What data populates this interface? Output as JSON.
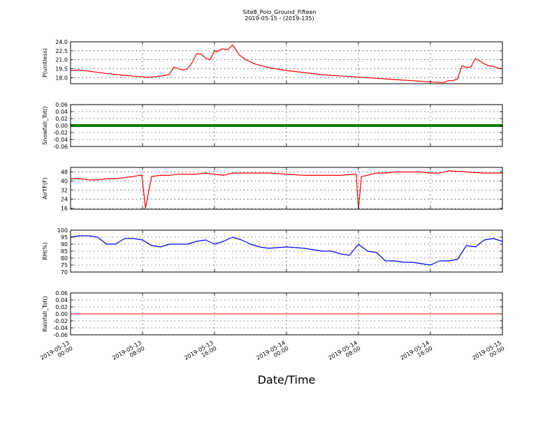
{
  "figure": {
    "title": "Site8_Polo_Ground_Fifteen",
    "subtitle": "2019-05-15 - (2019-135)",
    "xlabel": "Date/Time"
  },
  "chart_data": {
    "type": "line",
    "x_axis": {
      "range": [
        "2019-05-13 00:00",
        "2019-05-15 00:00"
      ],
      "ticks": [
        {
          "value": "2019-05-13 00:00",
          "line1": "2019-05-13",
          "line2": "00:00"
        },
        {
          "value": "2019-05-13 08:00",
          "line1": "2019-05-13",
          "line2": "08:00"
        },
        {
          "value": "2019-05-13 16:00",
          "line1": "2019-05-13",
          "line2": "16:00"
        },
        {
          "value": "2019-05-14 00:00",
          "line1": "2019-05-14",
          "line2": "00:00"
        },
        {
          "value": "2019-05-14 08:00",
          "line1": "2019-05-14",
          "line2": "08:00"
        },
        {
          "value": "2019-05-14 16:00",
          "line1": "2019-05-14",
          "line2": "16:00"
        },
        {
          "value": "2019-05-15 00:00",
          "line1": "2019-05-15",
          "line2": "00:00"
        }
      ]
    },
    "grid": true,
    "panels": [
      {
        "ylabel": "P(unitless)",
        "color": "#ff0000",
        "ylim": [
          17.0,
          24.0
        ],
        "yticks": [
          "18.0",
          "19.5",
          "21.0",
          "22.5",
          "24.0"
        ],
        "x": [
          "2019-05-13 00:00",
          "2019-05-13 01:00",
          "2019-05-13 02:00",
          "2019-05-13 04:00",
          "2019-05-13 06:00",
          "2019-05-13 07:30",
          "2019-05-13 08:30",
          "2019-05-13 09:00",
          "2019-05-13 09:30",
          "2019-05-13 10:00",
          "2019-05-13 10:30",
          "2019-05-13 11:00",
          "2019-05-13 11:30",
          "2019-05-13 12:00",
          "2019-05-13 12:30",
          "2019-05-13 13:00",
          "2019-05-13 13:30",
          "2019-05-13 14:00",
          "2019-05-13 14:30",
          "2019-05-13 15:00",
          "2019-05-13 15:30",
          "2019-05-13 16:00",
          "2019-05-13 16:15",
          "2019-05-13 16:45",
          "2019-05-13 17:00",
          "2019-05-13 17:30",
          "2019-05-13 18:00",
          "2019-05-13 18:15",
          "2019-05-13 18:45",
          "2019-05-13 19:30",
          "2019-05-13 20:30",
          "2019-05-13 22:00",
          "2019-05-14 00:00",
          "2019-05-14 04:00",
          "2019-05-14 08:00",
          "2019-05-14 12:00",
          "2019-05-14 16:00",
          "2019-05-14 17:30",
          "2019-05-14 18:00",
          "2019-05-14 18:30",
          "2019-05-14 19:00",
          "2019-05-14 19:30",
          "2019-05-14 20:00",
          "2019-05-14 20:30",
          "2019-05-14 21:00",
          "2019-05-14 21:30",
          "2019-05-14 22:00",
          "2019-05-14 22:30",
          "2019-05-14 23:00",
          "2019-05-14 23:30",
          "2019-05-15 00:00"
        ],
        "y": [
          19.2,
          19.3,
          19.1,
          18.7,
          18.4,
          18.2,
          18.1,
          18.1,
          18.2,
          18.3,
          18.4,
          18.6,
          19.8,
          19.5,
          19.3,
          19.5,
          20.5,
          22.0,
          22.0,
          21.3,
          21.0,
          22.5,
          22.3,
          22.8,
          22.8,
          22.7,
          23.5,
          23.0,
          21.8,
          21.0,
          20.3,
          19.7,
          19.2,
          18.5,
          18.1,
          17.7,
          17.3,
          17.2,
          17.5,
          17.5,
          17.8,
          20.0,
          19.7,
          19.8,
          21.2,
          20.8,
          20.3,
          20.0,
          19.9,
          19.6,
          19.5
        ]
      },
      {
        "ylabel": "Snowfall_Tot()",
        "color": "#008000",
        "ylim": [
          -0.06,
          0.06
        ],
        "yticks": [
          "-0.06",
          "-0.04",
          "-0.02",
          "0.00",
          "0.02",
          "0.04",
          "0.06"
        ],
        "constant": 0.0
      },
      {
        "ylabel": "AirTF(F)",
        "color": "#ff0000",
        "ylim": [
          15,
          52
        ],
        "yticks": [
          "16",
          "24",
          "32",
          "40",
          "48"
        ],
        "x": [
          "2019-05-13 00:00",
          "2019-05-13 01:00",
          "2019-05-13 02:00",
          "2019-05-13 03:00",
          "2019-05-13 04:00",
          "2019-05-13 05:00",
          "2019-05-13 06:00",
          "2019-05-13 07:00",
          "2019-05-13 07:40",
          "2019-05-13 07:55",
          "2019-05-13 08:20",
          "2019-05-13 09:00",
          "2019-05-13 10:00",
          "2019-05-13 11:00",
          "2019-05-13 12:00",
          "2019-05-13 13:00",
          "2019-05-13 14:00",
          "2019-05-13 15:00",
          "2019-05-13 16:00",
          "2019-05-13 17:00",
          "2019-05-13 18:00",
          "2019-05-13 20:00",
          "2019-05-13 22:00",
          "2019-05-14 00:00",
          "2019-05-14 02:00",
          "2019-05-14 04:00",
          "2019-05-14 06:00",
          "2019-05-14 07:45",
          "2019-05-14 08:00",
          "2019-05-14 08:20",
          "2019-05-14 09:00",
          "2019-05-14 10:00",
          "2019-05-14 11:00",
          "2019-05-14 12:00",
          "2019-05-14 13:00",
          "2019-05-14 14:00",
          "2019-05-14 15:00",
          "2019-05-14 16:00",
          "2019-05-14 17:00",
          "2019-05-14 18:00",
          "2019-05-14 20:00",
          "2019-05-14 22:00",
          "2019-05-15 00:00"
        ],
        "y": [
          42,
          42,
          41,
          41,
          42,
          42,
          43,
          44,
          45,
          45,
          16,
          44,
          45,
          45,
          46,
          46,
          46,
          47,
          46,
          45,
          47,
          47,
          47,
          46,
          45,
          45,
          45,
          46,
          15,
          44,
          45,
          47,
          47,
          48,
          48,
          48,
          48,
          47,
          47,
          49,
          48,
          47,
          47
        ]
      },
      {
        "ylabel": "RH(%)",
        "color": "#0000ff",
        "ylim": [
          70,
          100
        ],
        "yticks": [
          "70",
          "75",
          "80",
          "85",
          "90",
          "95",
          "100"
        ],
        "x": [
          "2019-05-13 00:00",
          "2019-05-13 01:00",
          "2019-05-13 02:00",
          "2019-05-13 03:00",
          "2019-05-13 04:00",
          "2019-05-13 05:00",
          "2019-05-13 06:00",
          "2019-05-13 07:00",
          "2019-05-13 08:00",
          "2019-05-13 09:00",
          "2019-05-13 10:00",
          "2019-05-13 11:00",
          "2019-05-13 12:00",
          "2019-05-13 13:00",
          "2019-05-13 14:00",
          "2019-05-13 15:00",
          "2019-05-13 16:00",
          "2019-05-13 17:00",
          "2019-05-13 18:00",
          "2019-05-13 19:00",
          "2019-05-13 20:00",
          "2019-05-13 21:00",
          "2019-05-13 22:00",
          "2019-05-14 00:00",
          "2019-05-14 02:00",
          "2019-05-14 03:00",
          "2019-05-14 04:00",
          "2019-05-14 05:00",
          "2019-05-14 06:00",
          "2019-05-14 07:00",
          "2019-05-14 08:00",
          "2019-05-14 09:00",
          "2019-05-14 10:00",
          "2019-05-14 11:00",
          "2019-05-14 12:00",
          "2019-05-14 13:00",
          "2019-05-14 14:00",
          "2019-05-14 15:00",
          "2019-05-14 16:00",
          "2019-05-14 17:00",
          "2019-05-14 18:00",
          "2019-05-14 19:00",
          "2019-05-14 20:00",
          "2019-05-14 21:00",
          "2019-05-14 22:00",
          "2019-05-14 23:00",
          "2019-05-15 00:00"
        ],
        "y": [
          95,
          96,
          96,
          95,
          90,
          90,
          94,
          94,
          93,
          89,
          88,
          90,
          90,
          90,
          92,
          93,
          90,
          92,
          95,
          93,
          90,
          88,
          87,
          88,
          87,
          86,
          85,
          85,
          83,
          82,
          90,
          85,
          84,
          78,
          78,
          77,
          77,
          76,
          75,
          78,
          78,
          79,
          89,
          88,
          93,
          94,
          92
        ]
      },
      {
        "ylabel": "Rainfall_Tot()",
        "color": "#ff0000",
        "ylim": [
          -0.06,
          0.06
        ],
        "yticks": [
          "-0.06",
          "-0.04",
          "-0.02",
          "0.00",
          "0.02",
          "0.04",
          "0.06"
        ],
        "constant": 0.0
      }
    ]
  }
}
